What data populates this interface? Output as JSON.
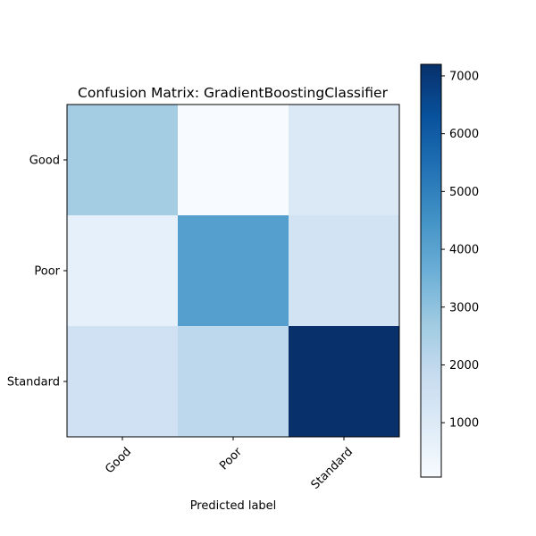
{
  "chart_data": {
    "type": "heatmap",
    "title": "Confusion Matrix: GradientBoostingClassifier",
    "xlabel": "Predicted label",
    "ylabel": "",
    "x_categories": [
      "Good",
      "Poor",
      "Standard"
    ],
    "y_categories": [
      "Good",
      "Poor",
      "Standard"
    ],
    "values": [
      [
        2600,
        60,
        1050
      ],
      [
        650,
        4100,
        1400
      ],
      [
        1500,
        2050,
        7200
      ]
    ],
    "colorbar": {
      "colormap": "Blues",
      "range": [
        60,
        7200
      ],
      "ticks": [
        1000,
        2000,
        3000,
        4000,
        5000,
        6000,
        7000
      ]
    },
    "grid": false,
    "legend": "none"
  }
}
